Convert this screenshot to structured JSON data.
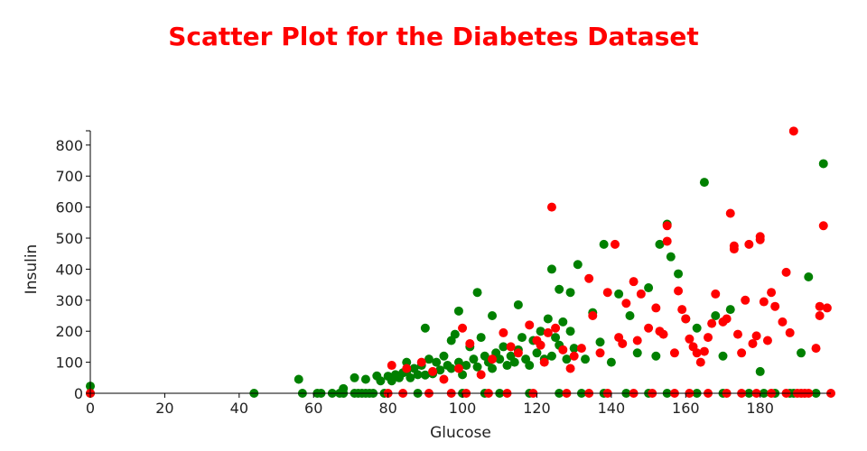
{
  "chart_data": {
    "type": "scatter",
    "title": "Scatter Plot for the Diabetes Dataset",
    "title_color": "#ff0000",
    "xlabel": "Glucose",
    "ylabel": "Insulin",
    "xlim": [
      0,
      199
    ],
    "ylim": [
      0,
      846
    ],
    "xticks": [
      0,
      20,
      40,
      60,
      80,
      100,
      120,
      140,
      160,
      180
    ],
    "yticks": [
      0,
      100,
      200,
      300,
      400,
      500,
      600,
      700,
      800
    ],
    "grid": false,
    "legend": "none",
    "series": [
      {
        "color": "#008000",
        "points": [
          [
            0,
            0
          ],
          [
            0,
            23
          ],
          [
            44,
            0
          ],
          [
            56,
            45
          ],
          [
            57,
            0
          ],
          [
            61,
            0
          ],
          [
            62,
            0
          ],
          [
            65,
            0
          ],
          [
            67,
            0
          ],
          [
            68,
            15
          ],
          [
            68,
            0
          ],
          [
            71,
            50
          ],
          [
            71,
            0
          ],
          [
            72,
            0
          ],
          [
            73,
            0
          ],
          [
            74,
            0
          ],
          [
            74,
            45
          ],
          [
            75,
            0
          ],
          [
            76,
            0
          ],
          [
            77,
            56
          ],
          [
            78,
            40
          ],
          [
            79,
            0
          ],
          [
            80,
            55
          ],
          [
            81,
            40
          ],
          [
            82,
            60
          ],
          [
            83,
            50
          ],
          [
            84,
            66
          ],
          [
            85,
            100
          ],
          [
            85,
            70
          ],
          [
            86,
            50
          ],
          [
            87,
            80
          ],
          [
            88,
            60
          ],
          [
            88,
            0
          ],
          [
            89,
            90
          ],
          [
            90,
            59
          ],
          [
            91,
            110
          ],
          [
            92,
            63
          ],
          [
            93,
            100
          ],
          [
            94,
            75
          ],
          [
            95,
            120
          ],
          [
            96,
            90
          ],
          [
            97,
            80
          ],
          [
            98,
            190
          ],
          [
            99,
            100
          ],
          [
            100,
            60
          ],
          [
            101,
            90
          ],
          [
            102,
            150
          ],
          [
            103,
            110
          ],
          [
            104,
            85
          ],
          [
            105,
            180
          ],
          [
            106,
            120
          ],
          [
            107,
            100
          ],
          [
            108,
            80
          ],
          [
            109,
            130
          ],
          [
            110,
            110
          ],
          [
            111,
            150
          ],
          [
            112,
            90
          ],
          [
            113,
            120
          ],
          [
            114,
            100
          ],
          [
            115,
            140
          ],
          [
            116,
            180
          ],
          [
            117,
            110
          ],
          [
            118,
            90
          ],
          [
            119,
            170
          ],
          [
            120,
            130
          ],
          [
            121,
            200
          ],
          [
            122,
            110
          ],
          [
            123,
            240
          ],
          [
            124,
            120
          ],
          [
            125,
            180
          ],
          [
            126,
            155
          ],
          [
            127,
            230
          ],
          [
            128,
            110
          ],
          [
            129,
            200
          ],
          [
            130,
            145
          ],
          [
            90,
            210
          ],
          [
            97,
            170
          ],
          [
            99,
            265
          ],
          [
            104,
            325
          ],
          [
            108,
            250
          ],
          [
            115,
            285
          ],
          [
            124,
            400
          ],
          [
            126,
            335
          ],
          [
            129,
            325
          ],
          [
            131,
            415
          ],
          [
            133,
            110
          ],
          [
            135,
            260
          ],
          [
            137,
            165
          ],
          [
            138,
            480
          ],
          [
            140,
            100
          ],
          [
            142,
            320
          ],
          [
            145,
            250
          ],
          [
            147,
            130
          ],
          [
            150,
            340
          ],
          [
            152,
            120
          ],
          [
            153,
            480
          ],
          [
            155,
            545
          ],
          [
            156,
            440
          ],
          [
            158,
            385
          ],
          [
            160,
            240
          ],
          [
            163,
            210
          ],
          [
            165,
            680
          ],
          [
            168,
            250
          ],
          [
            170,
            120
          ],
          [
            172,
            270
          ],
          [
            180,
            70
          ],
          [
            181,
            0
          ],
          [
            184,
            0
          ],
          [
            188,
            0
          ],
          [
            189,
            0
          ],
          [
            191,
            130
          ],
          [
            193,
            375
          ],
          [
            195,
            0
          ],
          [
            197,
            740
          ],
          [
            100,
            0
          ],
          [
            106,
            0
          ],
          [
            110,
            0
          ],
          [
            118,
            0
          ],
          [
            126,
            0
          ],
          [
            132,
            0
          ],
          [
            138,
            0
          ],
          [
            144,
            0
          ],
          [
            150,
            0
          ],
          [
            155,
            0
          ],
          [
            163,
            0
          ],
          [
            170,
            0
          ],
          [
            177,
            0
          ]
        ]
      },
      {
        "color": "#ff0000",
        "points": [
          [
            0,
            0
          ],
          [
            81,
            90
          ],
          [
            85,
            80
          ],
          [
            89,
            100
          ],
          [
            92,
            70
          ],
          [
            95,
            45
          ],
          [
            99,
            80
          ],
          [
            100,
            210
          ],
          [
            102,
            160
          ],
          [
            105,
            60
          ],
          [
            108,
            110
          ],
          [
            111,
            195
          ],
          [
            113,
            150
          ],
          [
            115,
            130
          ],
          [
            118,
            220
          ],
          [
            120,
            170
          ],
          [
            121,
            155
          ],
          [
            122,
            100
          ],
          [
            123,
            195
          ],
          [
            124,
            600
          ],
          [
            125,
            210
          ],
          [
            127,
            140
          ],
          [
            129,
            80
          ],
          [
            130,
            120
          ],
          [
            132,
            145
          ],
          [
            134,
            370
          ],
          [
            135,
            250
          ],
          [
            137,
            130
          ],
          [
            139,
            325
          ],
          [
            141,
            480
          ],
          [
            142,
            180
          ],
          [
            143,
            160
          ],
          [
            144,
            290
          ],
          [
            146,
            360
          ],
          [
            147,
            170
          ],
          [
            148,
            320
          ],
          [
            150,
            210
          ],
          [
            152,
            275
          ],
          [
            153,
            200
          ],
          [
            154,
            190
          ],
          [
            155,
            490
          ],
          [
            155,
            540
          ],
          [
            157,
            130
          ],
          [
            158,
            330
          ],
          [
            159,
            270
          ],
          [
            160,
            240
          ],
          [
            161,
            175
          ],
          [
            162,
            150
          ],
          [
            163,
            130
          ],
          [
            164,
            100
          ],
          [
            165,
            135
          ],
          [
            166,
            180
          ],
          [
            167,
            225
          ],
          [
            168,
            320
          ],
          [
            170,
            230
          ],
          [
            171,
            240
          ],
          [
            172,
            580
          ],
          [
            173,
            465
          ],
          [
            173,
            475
          ],
          [
            174,
            190
          ],
          [
            175,
            130
          ],
          [
            176,
            300
          ],
          [
            177,
            480
          ],
          [
            178,
            160
          ],
          [
            179,
            185
          ],
          [
            180,
            505
          ],
          [
            180,
            495
          ],
          [
            181,
            295
          ],
          [
            182,
            170
          ],
          [
            183,
            325
          ],
          [
            184,
            280
          ],
          [
            186,
            230
          ],
          [
            187,
            390
          ],
          [
            188,
            195
          ],
          [
            189,
            845
          ],
          [
            190,
            0
          ],
          [
            191,
            0
          ],
          [
            193,
            0
          ],
          [
            195,
            145
          ],
          [
            196,
            250
          ],
          [
            196,
            280
          ],
          [
            197,
            540
          ],
          [
            198,
            275
          ],
          [
            199,
            0
          ],
          [
            80,
            0
          ],
          [
            84,
            0
          ],
          [
            91,
            0
          ],
          [
            97,
            0
          ],
          [
            101,
            0
          ],
          [
            107,
            0
          ],
          [
            112,
            0
          ],
          [
            119,
            0
          ],
          [
            128,
            0
          ],
          [
            134,
            0
          ],
          [
            139,
            0
          ],
          [
            146,
            0
          ],
          [
            151,
            0
          ],
          [
            157,
            0
          ],
          [
            161,
            0
          ],
          [
            166,
            0
          ],
          [
            171,
            0
          ],
          [
            175,
            0
          ],
          [
            179,
            0
          ],
          [
            183,
            0
          ],
          [
            187,
            0
          ],
          [
            192,
            0
          ]
        ]
      }
    ]
  }
}
